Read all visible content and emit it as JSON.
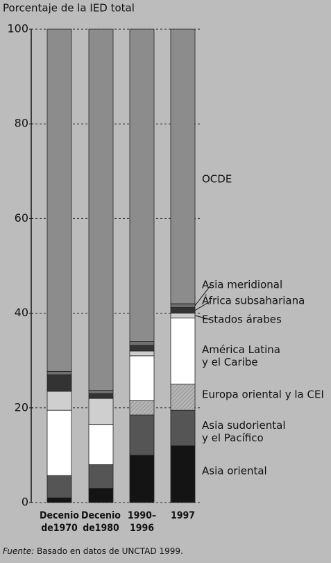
{
  "chart_data": {
    "type": "stacked_bar",
    "y_axis_label": "Porcentaje de la IED total",
    "categories": [
      "Decenio\nde1970",
      "Decenio\nde1980",
      "1990–\n1996",
      "1997"
    ],
    "ylim": [
      0,
      100
    ],
    "yticks": [
      0,
      20,
      40,
      60,
      80,
      100
    ],
    "grid": true,
    "series": [
      {
        "name": "Asia oriental",
        "color": "#141414",
        "values": [
          1,
          3,
          10,
          12
        ]
      },
      {
        "name": "Asia sudoriental\ny el Pacífico",
        "color": "#555555",
        "values": [
          4.7,
          5,
          8.5,
          7.5
        ]
      },
      {
        "name": "Europa oriental y la CEI",
        "color": "#a9a9a9",
        "values": [
          0,
          0,
          3,
          5.5
        ]
      },
      {
        "name": "América Latina\ny el Caribe",
        "color": "#ffffff",
        "values": [
          13.8,
          8.5,
          9.5,
          14
        ]
      },
      {
        "name": "Estados árabes",
        "color": "#cfcfcf",
        "values": [
          4,
          5.5,
          1,
          1
        ]
      },
      {
        "name": "África subsahariana",
        "color": "#333333",
        "values": [
          3.5,
          1,
          1.2,
          1.2
        ]
      },
      {
        "name": "Asia meridional",
        "color": "#6e6e6e",
        "values": [
          0.7,
          0.7,
          0.8,
          0.8
        ]
      },
      {
        "name": "OCDE",
        "color": "#8c8c8c",
        "values": [
          72.3,
          76.3,
          66,
          58
        ]
      }
    ],
    "source_label": "Fuente:",
    "source": "Basado en datos de UNCTAD 1999."
  }
}
